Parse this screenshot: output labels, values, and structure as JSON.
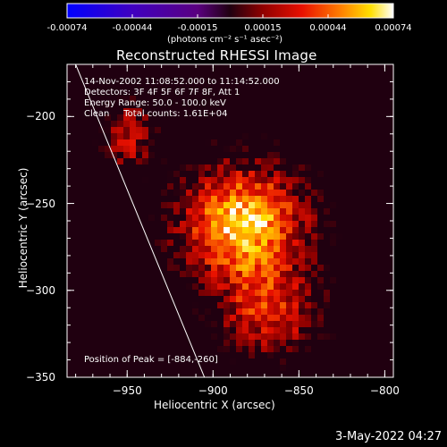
{
  "colorbar": {
    "ticks": [
      "-0.00074",
      "-0.00044",
      "-0.00015",
      "0.00015",
      "0.00044",
      "0.00074"
    ],
    "unit": "(photons cm⁻² s⁻¹ asec⁻²)",
    "range": [
      -0.00074,
      0.00074
    ]
  },
  "annotations": {
    "time": "14-Nov-2002 11:08:52.000 to 11:14:52.000",
    "detectors": "Detectors: 3F 4F 5F 6F 7F 8F, Att 1",
    "energy": "Energy Range: 50.0 - 100.0 keV",
    "method": "Clean     Total counts: 1.61E+04",
    "peak": "Position of Peak = [-884,-260]"
  },
  "footer": {
    "date": "3-May-2022 04:27"
  },
  "chart_data": {
    "type": "heatmap",
    "title": "Reconstructed RHESSI Image",
    "xlabel": "Heliocentric X (arcsec)",
    "ylabel": "Heliocentric Y (arcsec)",
    "xlim": [
      -985,
      -795
    ],
    "ylim": [
      -350,
      -170
    ],
    "xticks": [
      -950,
      -900,
      -850,
      -800
    ],
    "yticks": [
      -200,
      -250,
      -300,
      -350
    ],
    "xtick_labels": [
      "−950",
      "−900",
      "−850",
      "−800"
    ],
    "ytick_labels": [
      "−200",
      "−250",
      "−300",
      "−350"
    ],
    "peak": [
      -884,
      -260
    ],
    "limb_line": [
      [
        -980,
        -170
      ],
      [
        -905,
        -350
      ]
    ],
    "colormap": "blue-purple-red-orange-yellow-white"
  }
}
